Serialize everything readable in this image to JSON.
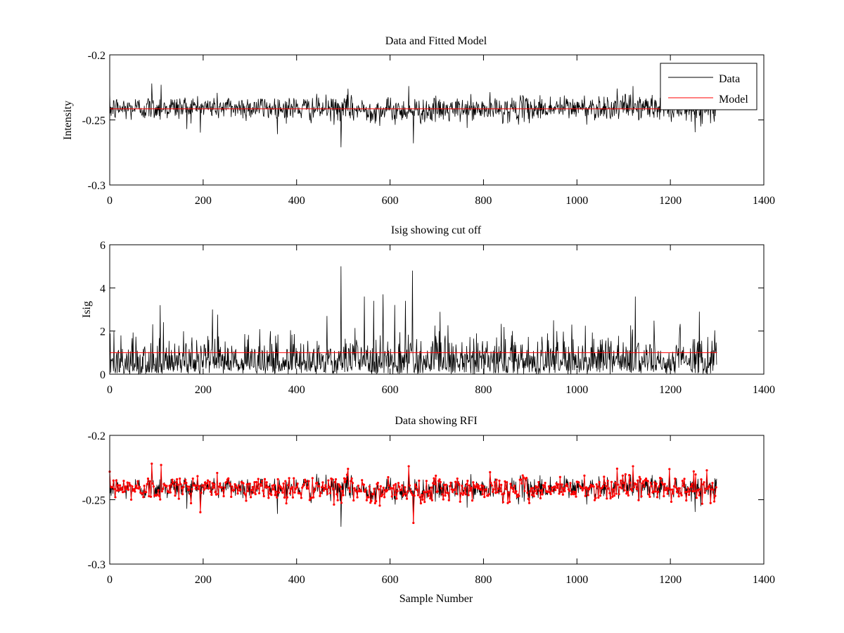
{
  "chart_data": [
    {
      "type": "line",
      "title": "Data and Fitted Model",
      "xlabel": "",
      "ylabel": "Intensity",
      "xlim": [
        0,
        1400
      ],
      "ylim": [
        -0.3,
        -0.2
      ],
      "xticks": [
        0,
        200,
        400,
        600,
        800,
        1000,
        1200,
        1400
      ],
      "yticks": [
        -0.3,
        -0.25,
        -0.2
      ],
      "xtick_labels": [
        "0",
        "200",
        "400",
        "600",
        "800",
        "1000",
        "1200",
        "1400"
      ],
      "ytick_labels": [
        "-0.3",
        "-0.25",
        "-0.2"
      ],
      "legend": {
        "position": "top-right",
        "entries": [
          "Data",
          "Model"
        ]
      },
      "series": [
        {
          "name": "Data",
          "color": "#000000",
          "n_samples": 1300,
          "baseline": -0.2415,
          "noise_sd": 0.0048,
          "spikes": [
            [
              90,
              -0.222
            ],
            [
              110,
              -0.223
            ],
            [
              165,
              -0.257
            ],
            [
              495,
              -0.271
            ],
            [
              510,
              -0.226
            ],
            [
              650,
              -0.268
            ],
            [
              640,
              -0.224
            ],
            [
              1120,
              -0.224
            ],
            [
              1265,
              -0.255
            ],
            [
              1250,
              -0.228
            ]
          ]
        },
        {
          "name": "Model",
          "color": "#ff0000",
          "constant": -0.2415,
          "x": [
            0,
            1300
          ]
        }
      ]
    },
    {
      "type": "line",
      "title": "Isig showing cut off",
      "xlabel": "",
      "ylabel": "Isig",
      "xlim": [
        0,
        1400
      ],
      "ylim": [
        0,
        6
      ],
      "xticks": [
        0,
        200,
        400,
        600,
        800,
        1000,
        1200,
        1400
      ],
      "yticks": [
        0,
        2,
        4,
        6
      ],
      "xtick_labels": [
        "0",
        "200",
        "400",
        "600",
        "800",
        "1000",
        "1200",
        "1400"
      ],
      "ytick_labels": [
        "0",
        "2",
        "4",
        "6"
      ],
      "series": [
        {
          "name": "Isig",
          "color": "#000000",
          "n_samples": 1300,
          "scale": 0.85,
          "spikes": [
            [
              108,
              3.2
            ],
            [
              220,
              3.0
            ],
            [
              465,
              2.7
            ],
            [
              495,
              5.0
            ],
            [
              545,
              3.6
            ],
            [
              565,
              3.4
            ],
            [
              585,
              3.7
            ],
            [
              633,
              3.4
            ],
            [
              648,
              4.8
            ],
            [
              950,
              2.5
            ],
            [
              1125,
              3.6
            ],
            [
              1262,
              2.9
            ]
          ]
        },
        {
          "name": "Cutoff",
          "color": "#ff0000",
          "constant": 1.0,
          "x": [
            0,
            1300
          ]
        }
      ]
    },
    {
      "type": "line",
      "title": "Data showing RFI",
      "xlabel": "Sample Number",
      "ylabel": "",
      "xlim": [
        0,
        1400
      ],
      "ylim": [
        -0.3,
        -0.2
      ],
      "xticks": [
        0,
        200,
        400,
        600,
        800,
        1000,
        1200,
        1400
      ],
      "yticks": [
        -0.3,
        -0.25,
        -0.2
      ],
      "xtick_labels": [
        "0",
        "200",
        "400",
        "600",
        "800",
        "1000",
        "1200",
        "1400"
      ],
      "ytick_labels": [
        "-0.3",
        "-0.25",
        "-0.2"
      ],
      "series": [
        {
          "name": "Data",
          "color": "#000000",
          "source": "chart_data.0.series.0"
        },
        {
          "name": "RFI points",
          "color": "#ff0000",
          "marker": "dot",
          "every": 2,
          "source": "chart_data.0.series.0"
        }
      ]
    }
  ]
}
